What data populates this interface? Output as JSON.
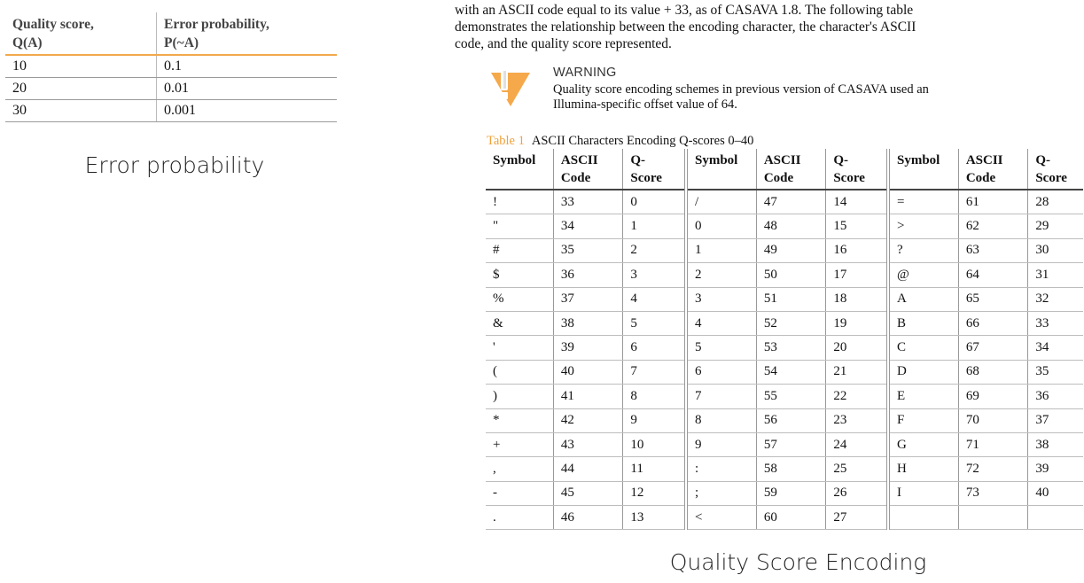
{
  "error_table": {
    "headers": [
      {
        "line1": "Quality score,",
        "line2": "Q(A)"
      },
      {
        "line1": "Error probability,",
        "line2": "P(~A)"
      }
    ],
    "rows": [
      [
        "10",
        "0.1"
      ],
      [
        "20",
        "0.01"
      ],
      [
        "30",
        "0.001"
      ]
    ],
    "caption": "Error probability"
  },
  "intro": {
    "lines": [
      "with an ASCII code equal to its value + 33, as of CASAVA 1.8. The following table",
      "demonstrates the relationship between the encoding character, the character's ASCII",
      "code, and the quality score represented."
    ]
  },
  "warning": {
    "icon": "warning-exclamation-icon",
    "title": "WARNING",
    "lines": [
      "Quality score encoding schemes in previous version of CASAVA used an",
      "Illumina-specific offset value of 64."
    ]
  },
  "table1": {
    "label": "Table 1",
    "title": "ASCII Characters Encoding Q-scores 0–40",
    "headers": [
      {
        "line1": "Symbol",
        "line2": ""
      },
      {
        "line1": "ASCII",
        "line2": "Code"
      },
      {
        "line1": "Q-",
        "line2": "Score"
      },
      {
        "line1": "Symbol",
        "line2": ""
      },
      {
        "line1": "ASCII",
        "line2": "Code"
      },
      {
        "line1": "Q-",
        "line2": "Score"
      },
      {
        "line1": "Symbol",
        "line2": ""
      },
      {
        "line1": "ASCII",
        "line2": "Code"
      },
      {
        "line1": "Q-",
        "line2": "Score"
      }
    ],
    "rows": [
      [
        "!",
        "33",
        "0",
        "/",
        "47",
        "14",
        "=",
        "61",
        "28"
      ],
      [
        "\"",
        "34",
        "1",
        "0",
        "48",
        "15",
        ">",
        "62",
        "29"
      ],
      [
        "#",
        "35",
        "2",
        "1",
        "49",
        "16",
        "?",
        "63",
        "30"
      ],
      [
        "$",
        "36",
        "3",
        "2",
        "50",
        "17",
        "@",
        "64",
        "31"
      ],
      [
        "%",
        "37",
        "4",
        "3",
        "51",
        "18",
        "A",
        "65",
        "32"
      ],
      [
        "&",
        "38",
        "5",
        "4",
        "52",
        "19",
        "B",
        "66",
        "33"
      ],
      [
        "'",
        "39",
        "6",
        "5",
        "53",
        "20",
        "C",
        "67",
        "34"
      ],
      [
        "(",
        "40",
        "7",
        "6",
        "54",
        "21",
        "D",
        "68",
        "35"
      ],
      [
        ")",
        "41",
        "8",
        "7",
        "55",
        "22",
        "E",
        "69",
        "36"
      ],
      [
        "*",
        "42",
        "9",
        "8",
        "56",
        "23",
        "F",
        "70",
        "37"
      ],
      [
        "+",
        "43",
        "10",
        "9",
        "57",
        "24",
        "G",
        "71",
        "38"
      ],
      [
        ",",
        "44",
        "11",
        ":",
        "58",
        "25",
        "H",
        "72",
        "39"
      ],
      [
        "-",
        "45",
        "12",
        ";",
        "59",
        "26",
        "I",
        "73",
        "40"
      ],
      [
        ".",
        "46",
        "13",
        "<",
        "60",
        "27",
        "",
        "",
        ""
      ]
    ]
  },
  "bottom_caption": "Quality Score Encoding"
}
